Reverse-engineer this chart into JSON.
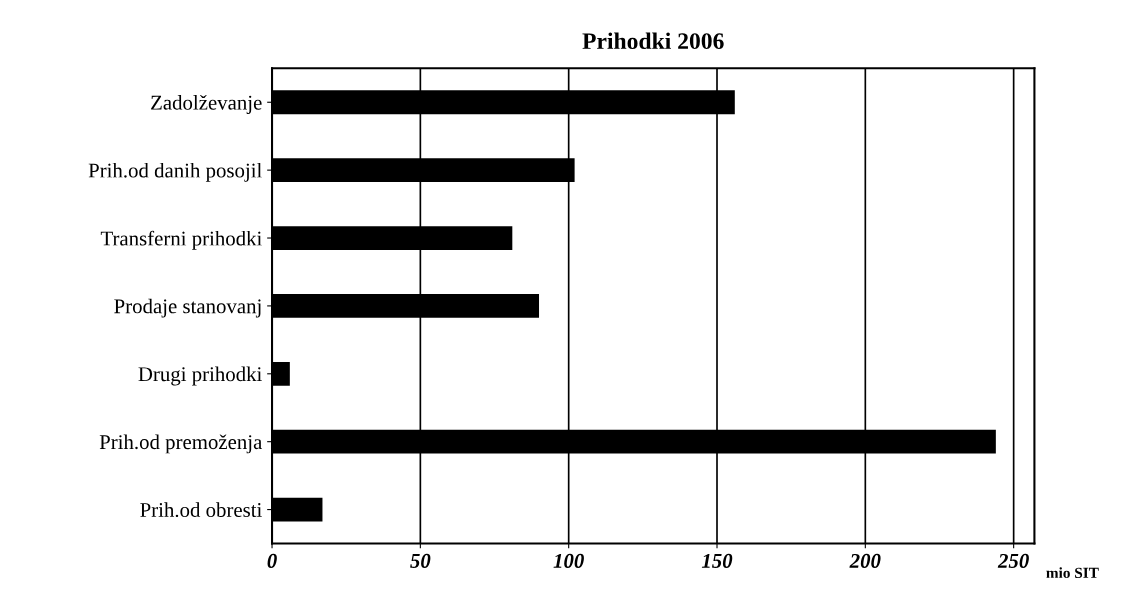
{
  "chart_data": {
    "type": "bar",
    "orientation": "horizontal",
    "title": "Prihodki 2006",
    "xlabel": "mio SIT",
    "categories": [
      "Zadolževanje",
      "Prih.od danih posojil",
      "Transferni prihodki",
      "Prodaje stanovanj",
      "Drugi prihodki",
      "Prih.od premoženja",
      "Prih.od obresti"
    ],
    "values": [
      156,
      102,
      81,
      90,
      6,
      244,
      17
    ],
    "color": "#000000",
    "xlim": [
      0,
      257
    ],
    "xticks": [
      0,
      50,
      100,
      150,
      200,
      250
    ],
    "grid": "x",
    "legend": false
  }
}
